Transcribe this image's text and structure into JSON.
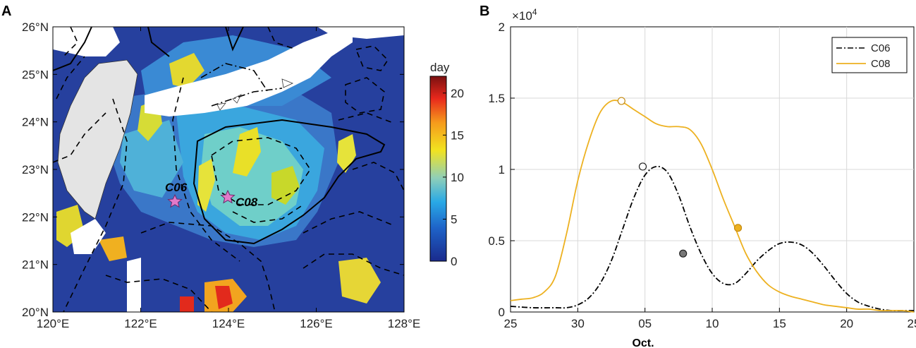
{
  "chart_data": [
    {
      "type": "heatmap",
      "panel": "A",
      "title": "",
      "xlabel": "",
      "ylabel": "",
      "x_ticks": [
        "120°E",
        "122°E",
        "124°E",
        "126°E",
        "128°E"
      ],
      "y_ticks": [
        "20°N",
        "21°N",
        "22°N",
        "23°N",
        "24°N",
        "25°N",
        "26°N"
      ],
      "xlim": [
        120,
        128
      ],
      "ylim": [
        20,
        26
      ],
      "colorbar": {
        "label": "day",
        "ticks": [
          "0",
          "5",
          "10",
          "15",
          "20"
        ],
        "range": [
          0,
          22
        ]
      },
      "stations": [
        {
          "name": "C06",
          "lon": 122.75,
          "lat": 22.35
        },
        {
          "name": "C08",
          "lon": 123.95,
          "lat": 22.45
        }
      ]
    },
    {
      "type": "line",
      "panel": "B",
      "title": "",
      "xlabel": "Oct.",
      "ylabel": "",
      "y_multiplier": "×10",
      "y_multiplier_exp": "4",
      "x_ticks": [
        "25",
        "30",
        "05",
        "10",
        "15",
        "20",
        "25"
      ],
      "y_ticks": [
        "0",
        "0.5",
        "1",
        "1.5",
        "2"
      ],
      "xlim": [
        0,
        36
      ],
      "ylim": [
        0,
        2
      ],
      "series": [
        {
          "name": "C06",
          "color": "#000000",
          "style": "dashdot",
          "x": [
            0,
            2,
            4,
            5,
            6,
            7,
            8,
            9,
            10,
            11,
            12,
            13,
            14,
            15,
            16,
            17,
            18,
            19,
            20,
            21,
            22,
            23,
            24,
            25,
            26,
            27,
            28,
            29,
            30,
            31,
            32,
            33,
            34,
            35,
            36
          ],
          "y": [
            0.04,
            0.03,
            0.03,
            0.03,
            0.05,
            0.1,
            0.2,
            0.36,
            0.58,
            0.8,
            0.96,
            1.02,
            0.98,
            0.82,
            0.6,
            0.41,
            0.27,
            0.2,
            0.2,
            0.27,
            0.36,
            0.43,
            0.48,
            0.49,
            0.47,
            0.41,
            0.32,
            0.22,
            0.13,
            0.07,
            0.04,
            0.02,
            0.01,
            0.01,
            0.01
          ],
          "markers": [
            {
              "x": 11.8,
              "y": 1.02,
              "filled": false
            },
            {
              "x": 15.4,
              "y": 0.41,
              "filled": true,
              "fill": "#777777"
            }
          ]
        },
        {
          "name": "C08",
          "color": "#edb120",
          "style": "solid",
          "x": [
            0,
            1,
            2,
            3,
            4,
            5,
            6,
            7,
            8,
            9,
            10,
            11,
            12,
            13,
            14,
            15,
            16,
            17,
            18,
            19,
            20,
            21,
            22,
            23,
            24,
            25,
            26,
            27,
            28,
            29,
            30,
            31,
            32,
            33,
            34,
            35,
            36
          ],
          "y": [
            0.08,
            0.09,
            0.1,
            0.14,
            0.25,
            0.55,
            0.92,
            1.2,
            1.4,
            1.48,
            1.47,
            1.42,
            1.37,
            1.32,
            1.3,
            1.3,
            1.28,
            1.18,
            1.0,
            0.79,
            0.6,
            0.41,
            0.28,
            0.19,
            0.14,
            0.11,
            0.09,
            0.07,
            0.05,
            0.04,
            0.03,
            0.02,
            0.02,
            0.01,
            0.01,
            0.01,
            0.0
          ],
          "markers": [
            {
              "x": 9.9,
              "y": 1.48,
              "filled": false
            },
            {
              "x": 20.3,
              "y": 0.59,
              "filled": true,
              "fill": "#edb120"
            }
          ]
        }
      ],
      "legend": {
        "placement": "top-right"
      }
    }
  ],
  "labels": {
    "panel_a": "A",
    "panel_b": "B"
  }
}
